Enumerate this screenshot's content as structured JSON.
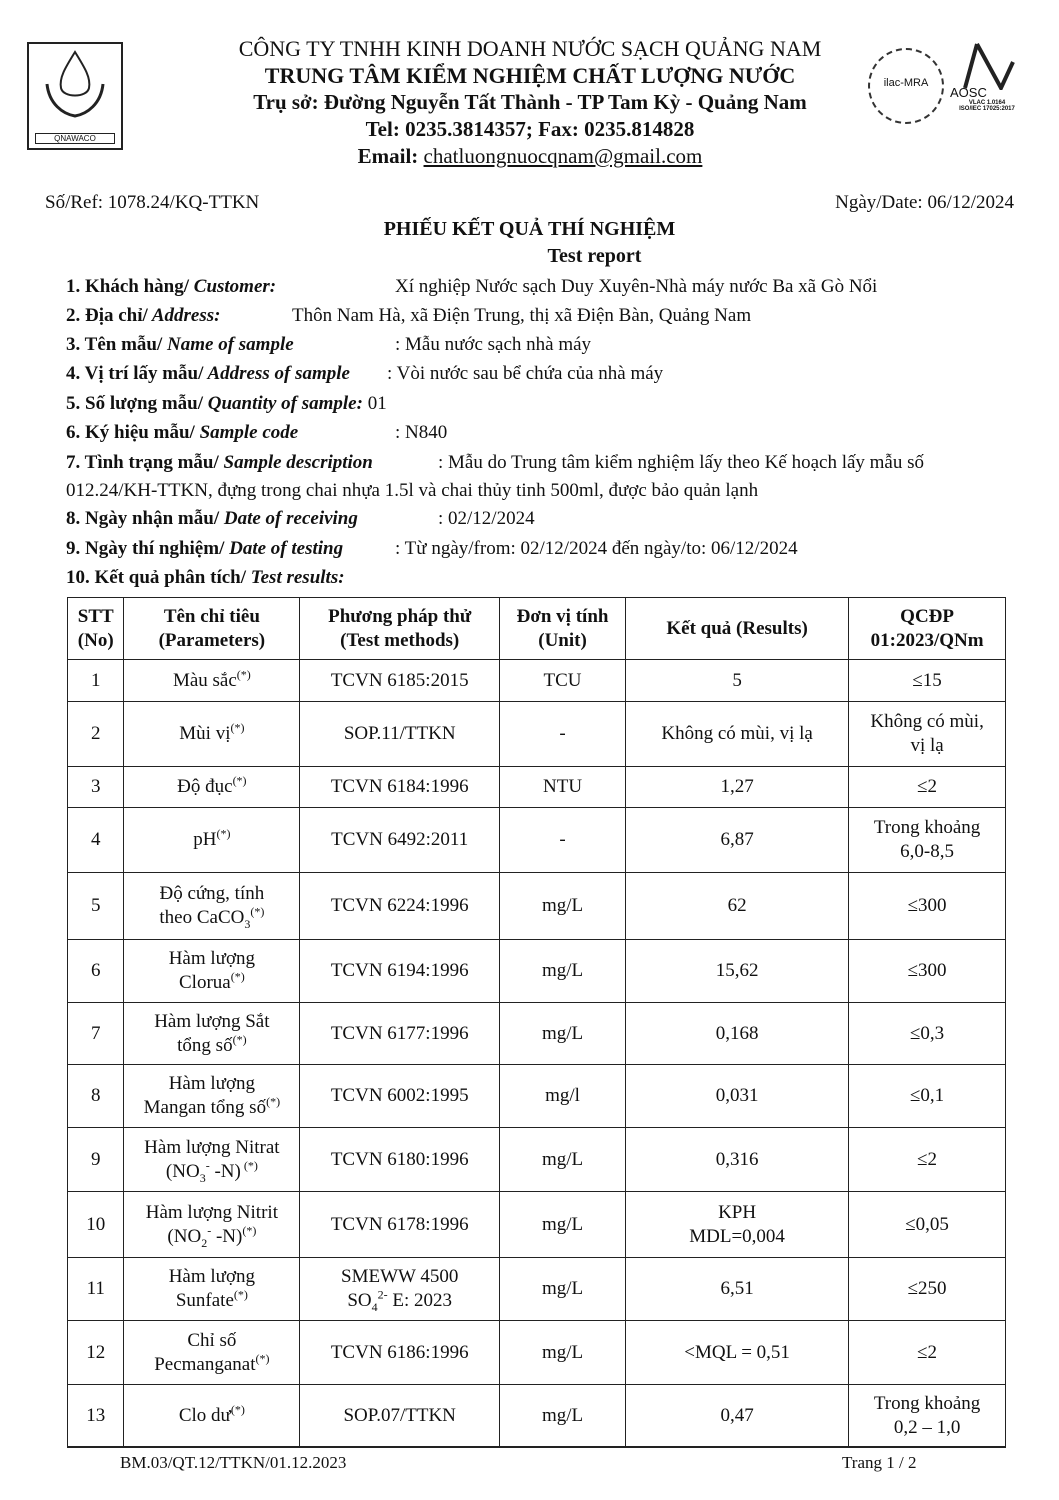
{
  "header": {
    "logo_text": "QNAWACO",
    "company": "CÔNG TY TNHH KINH DOANH NƯỚC SẠCH QUẢNG NAM",
    "center": "TRUNG TÂM KIỂM NGHIỆM CHẤT LƯỢNG NƯỚC",
    "address": "Trụ sở: Đường Nguyễn Tất Thành - TP Tam Kỳ -  Quảng Nam",
    "phone": "Tel: 0235.3814357; Fax: 0235.814828",
    "email_label": "Email:",
    "email": "chatluongnuocqnam@gmail.com",
    "badge_ilac": "ilac-MRA",
    "badge_aosc": "AOSC",
    "badge_vlac": "VLAC 1.0164",
    "badge_iso": "ISO/IEC 17025:2017"
  },
  "ref": "Số/Ref: 1078.24/KQ-TTKN",
  "date": "Ngày/Date: 06/12/2024",
  "title": "PHIẾU KẾT QUẢ THÍ NGHIỆM",
  "subtitle": "Test report",
  "info": [
    {
      "label": "1. Khách hàng/",
      "label_en": " Customer:",
      "value": "Xí nghiệp Nước sạch Duy Xuyên-Nhà máy nước Ba xã Gò Nổi"
    },
    {
      "label": "2. Địa chỉ/",
      "label_en": " Address:",
      "value": "Thôn Nam Hà, xã Điện Trung, thị xã Điện Bàn, Quảng Nam"
    },
    {
      "label": "3. Tên mẫu/",
      "label_en": " Name of sample",
      "value": ": Mẫu nước sạch nhà máy"
    },
    {
      "label": "4. Vị trí lấy mẫu/",
      "label_en": " Address of sample",
      "value": ": Vòi nước sau bể chứa của nhà máy"
    },
    {
      "label": "5. Số lượng mẫu/",
      "label_en": " Quantity of sample:",
      "value": " 01"
    },
    {
      "label": "6. Ký hiệu mẫu/",
      "label_en": " Sample code",
      "value": ": N840"
    },
    {
      "label": "7. Tình trạng mẫu/",
      "label_en": " Sample description",
      "value": ": Mẫu do Trung tâm kiểm nghiệm lấy theo Kế hoạch lấy mẫu số"
    },
    {
      "label": "",
      "label_en": "",
      "value": "012.24/KH-TTKN, đựng trong chai nhựa 1.5l và chai thủy tinh 500ml, được bảo quản lạnh"
    },
    {
      "label": "8. Ngày nhận mẫu/",
      "label_en": " Date of receiving",
      "value": ": 02/12/2024"
    },
    {
      "label": "9. Ngày thí nghiệm/",
      "label_en": " Date of testing",
      "value": ": Từ ngày/from: 02/12/2024  đến ngày/to: 06/12/2024"
    },
    {
      "label": "10. Kết quả phân tích/",
      "label_en": " Test results:",
      "value": ""
    }
  ],
  "table": {
    "headers": [
      [
        "STT",
        "(No)"
      ],
      [
        "Tên chỉ tiêu",
        "(Parameters)"
      ],
      [
        "Phương pháp thử",
        "(Test methods)"
      ],
      [
        "Đơn vị tính",
        "(Unit)"
      ],
      [
        "Kết quả (Results)"
      ],
      [
        "QCĐP",
        "01:2023/QNm"
      ]
    ],
    "rows": [
      {
        "no": "1",
        "param": [
          [
            "Màu sắc",
            ""
          ],
          [
            "(*)",
            "sup"
          ]
        ],
        "method": [
          [
            "TCVN 6185:2015",
            ""
          ]
        ],
        "unit": "TCU",
        "result": [
          "5"
        ],
        "limit": [
          "≤15"
        ]
      },
      {
        "no": "2",
        "param": [
          [
            "Mùi vị",
            ""
          ],
          [
            "(*)",
            "sup"
          ]
        ],
        "method": [
          [
            "SOP.11/TTKN",
            ""
          ]
        ],
        "unit": "-",
        "result": [
          "Không có mùi, vị lạ"
        ],
        "limit": [
          "Không có mùi,",
          "vị lạ"
        ]
      },
      {
        "no": "3",
        "param": [
          [
            "Độ đục",
            ""
          ],
          [
            "(*)",
            "sup"
          ]
        ],
        "method": [
          [
            "TCVN 6184:1996",
            ""
          ]
        ],
        "unit": "NTU",
        "result": [
          "1,27"
        ],
        "limit": [
          "≤2"
        ]
      },
      {
        "no": "4",
        "param": [
          [
            "pH",
            ""
          ],
          [
            "(*)",
            "sup"
          ]
        ],
        "method": [
          [
            "TCVN 6492:2011",
            ""
          ]
        ],
        "unit": "-",
        "result": [
          "6,87"
        ],
        "limit": [
          "Trong khoảng",
          "6,0-8,5"
        ]
      },
      {
        "no": "5",
        "param": [
          [
            "Độ cứng, tính",
            ""
          ],
          [
            "",
            "br"
          ],
          [
            "theo CaCO",
            ""
          ],
          [
            "3",
            "sub"
          ],
          [
            "(*)",
            "sup"
          ]
        ],
        "method": [
          [
            "TCVN 6224:1996",
            ""
          ]
        ],
        "unit": "mg/L",
        "result": [
          "62"
        ],
        "limit": [
          "≤300"
        ]
      },
      {
        "no": "6",
        "param": [
          [
            "Hàm lượng",
            ""
          ],
          [
            "",
            "br"
          ],
          [
            "Clorua",
            ""
          ],
          [
            "(*)",
            "sup"
          ]
        ],
        "method": [
          [
            "TCVN 6194:1996",
            ""
          ]
        ],
        "unit": "mg/L",
        "result": [
          "15,62"
        ],
        "limit": [
          "≤300"
        ]
      },
      {
        "no": "7",
        "param": [
          [
            "Hàm lượng Sắt",
            ""
          ],
          [
            "",
            "br"
          ],
          [
            "tổng số",
            ""
          ],
          [
            "(*)",
            "sup"
          ]
        ],
        "method": [
          [
            "TCVN 6177:1996",
            ""
          ]
        ],
        "unit": "mg/L",
        "result": [
          "0,168"
        ],
        "limit": [
          "≤0,3"
        ]
      },
      {
        "no": "8",
        "param": [
          [
            "Hàm lượng",
            ""
          ],
          [
            "",
            "br"
          ],
          [
            "Mangan tổng số",
            ""
          ],
          [
            "(*)",
            "sup"
          ]
        ],
        "method": [
          [
            "TCVN 6002:1995",
            ""
          ]
        ],
        "unit": "mg/l",
        "result": [
          "0,031"
        ],
        "limit": [
          "≤0,1"
        ]
      },
      {
        "no": "9",
        "param": [
          [
            "Hàm lượng Nitrat",
            ""
          ],
          [
            "",
            "br"
          ],
          [
            "(NO",
            ""
          ],
          [
            "3",
            "sub"
          ],
          [
            "-",
            "sup"
          ],
          [
            " -N)",
            ""
          ],
          [
            " (*)",
            "sup"
          ]
        ],
        "method": [
          [
            "TCVN 6180:1996",
            ""
          ]
        ],
        "unit": "mg/L",
        "result": [
          "0,316"
        ],
        "limit": [
          "≤2"
        ]
      },
      {
        "no": "10",
        "param": [
          [
            "Hàm lượng Nitrit",
            ""
          ],
          [
            "",
            "br"
          ],
          [
            "(NO",
            ""
          ],
          [
            "2",
            "sub"
          ],
          [
            "-",
            "sup"
          ],
          [
            " -N)",
            ""
          ],
          [
            "(*)",
            "sup"
          ]
        ],
        "method": [
          [
            "TCVN 6178:1996",
            ""
          ]
        ],
        "unit": "mg/L",
        "result": [
          "KPH",
          "MDL=0,004"
        ],
        "limit": [
          "≤0,05"
        ]
      },
      {
        "no": "11",
        "param": [
          [
            "Hàm lượng",
            ""
          ],
          [
            "",
            "br"
          ],
          [
            "Sunfate",
            ""
          ],
          [
            "(*)",
            "sup"
          ]
        ],
        "method": [
          [
            "SMEWW 4500",
            ""
          ],
          [
            "",
            "br"
          ],
          [
            "SO",
            ""
          ],
          [
            "4",
            "sub"
          ],
          [
            "2-",
            "sup"
          ],
          [
            " E: 2023",
            ""
          ]
        ],
        "unit": "mg/L",
        "result": [
          "6,51"
        ],
        "limit": [
          "≤250"
        ]
      },
      {
        "no": "12",
        "param": [
          [
            "Chỉ số",
            ""
          ],
          [
            "",
            "br"
          ],
          [
            "Pecmanganat",
            ""
          ],
          [
            "(*)",
            "sup"
          ]
        ],
        "method": [
          [
            "TCVN 6186:1996",
            ""
          ]
        ],
        "unit": "mg/L",
        "result": [
          "<MQL = 0,51"
        ],
        "limit": [
          "≤2"
        ]
      },
      {
        "no": "13",
        "param": [
          [
            "Clo dư",
            ""
          ],
          [
            "(*)",
            "sup"
          ]
        ],
        "method": [
          [
            "SOP.07/TTKN",
            ""
          ]
        ],
        "unit": "mg/L",
        "result": [
          "0,47"
        ],
        "limit": [
          "Trong khoảng",
          "0,2 – 1,0"
        ]
      }
    ]
  },
  "footer": {
    "form_code": "BM.03/QT.12/TTKN/01.12.2023",
    "page": "Trang 1 / 2"
  }
}
